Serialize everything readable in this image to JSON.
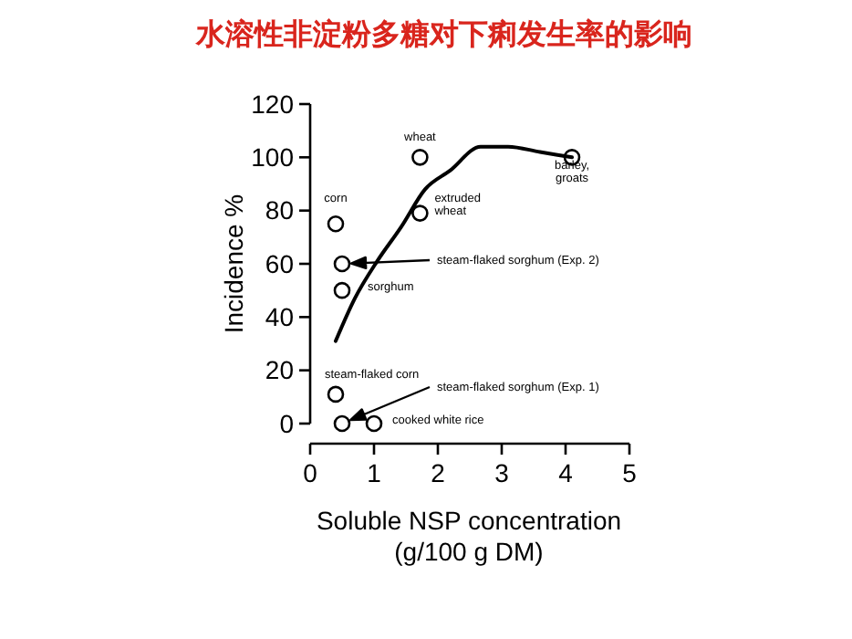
{
  "chart_data": {
    "type": "scatter",
    "title": "水溶性非淀粉多糖对下痢发生率的影响",
    "xlabel": "Soluble NSP concentration\n(g/100 g DM)",
    "ylabel": "Incidence %",
    "xlim": [
      0,
      5
    ],
    "xticks": [
      0,
      1,
      2,
      3,
      4,
      5
    ],
    "ylim": [
      0,
      120
    ],
    "yticks": [
      0,
      20,
      40,
      60,
      80,
      100,
      120
    ],
    "grid": false,
    "series": [
      {
        "marker": "circle",
        "color": "#000000",
        "x": [
          0.4,
          0.5,
          0.5,
          1.72,
          1.72,
          4.1,
          0.4,
          0.5,
          1.0
        ],
        "values": [
          75,
          60,
          50,
          100,
          79,
          100,
          11,
          0,
          0
        ]
      },
      {
        "type": "line",
        "color": "#000000",
        "x": [
          0.4,
          0.7,
          1.05,
          1.43,
          1.8,
          2.19,
          2.67,
          3.1,
          3.6,
          4.1
        ],
        "values": [
          31,
          47,
          61,
          74,
          88,
          95,
          104,
          104,
          102,
          100
        ]
      }
    ],
    "annotations": [
      {
        "text": "corn",
        "x": 0.4,
        "y": 75
      },
      {
        "text": "steam-flaked sorghum (Exp. 2)",
        "x": 0.5,
        "y": 60
      },
      {
        "text": "sorghum",
        "x": 0.5,
        "y": 50
      },
      {
        "text": "wheat",
        "x": 1.72,
        "y": 100
      },
      {
        "text": "extruded\nwheat",
        "x": 1.72,
        "y": 79
      },
      {
        "text": "barley,\ngroats",
        "x": 4.1,
        "y": 100
      },
      {
        "text": "steam-flaked corn",
        "x": 0.4,
        "y": 11
      },
      "steam-flaked sorghum (Exp. 1)",
      {
        "text": "cooked white rice",
        "x": 1.0,
        "y": 0
      }
    ]
  }
}
